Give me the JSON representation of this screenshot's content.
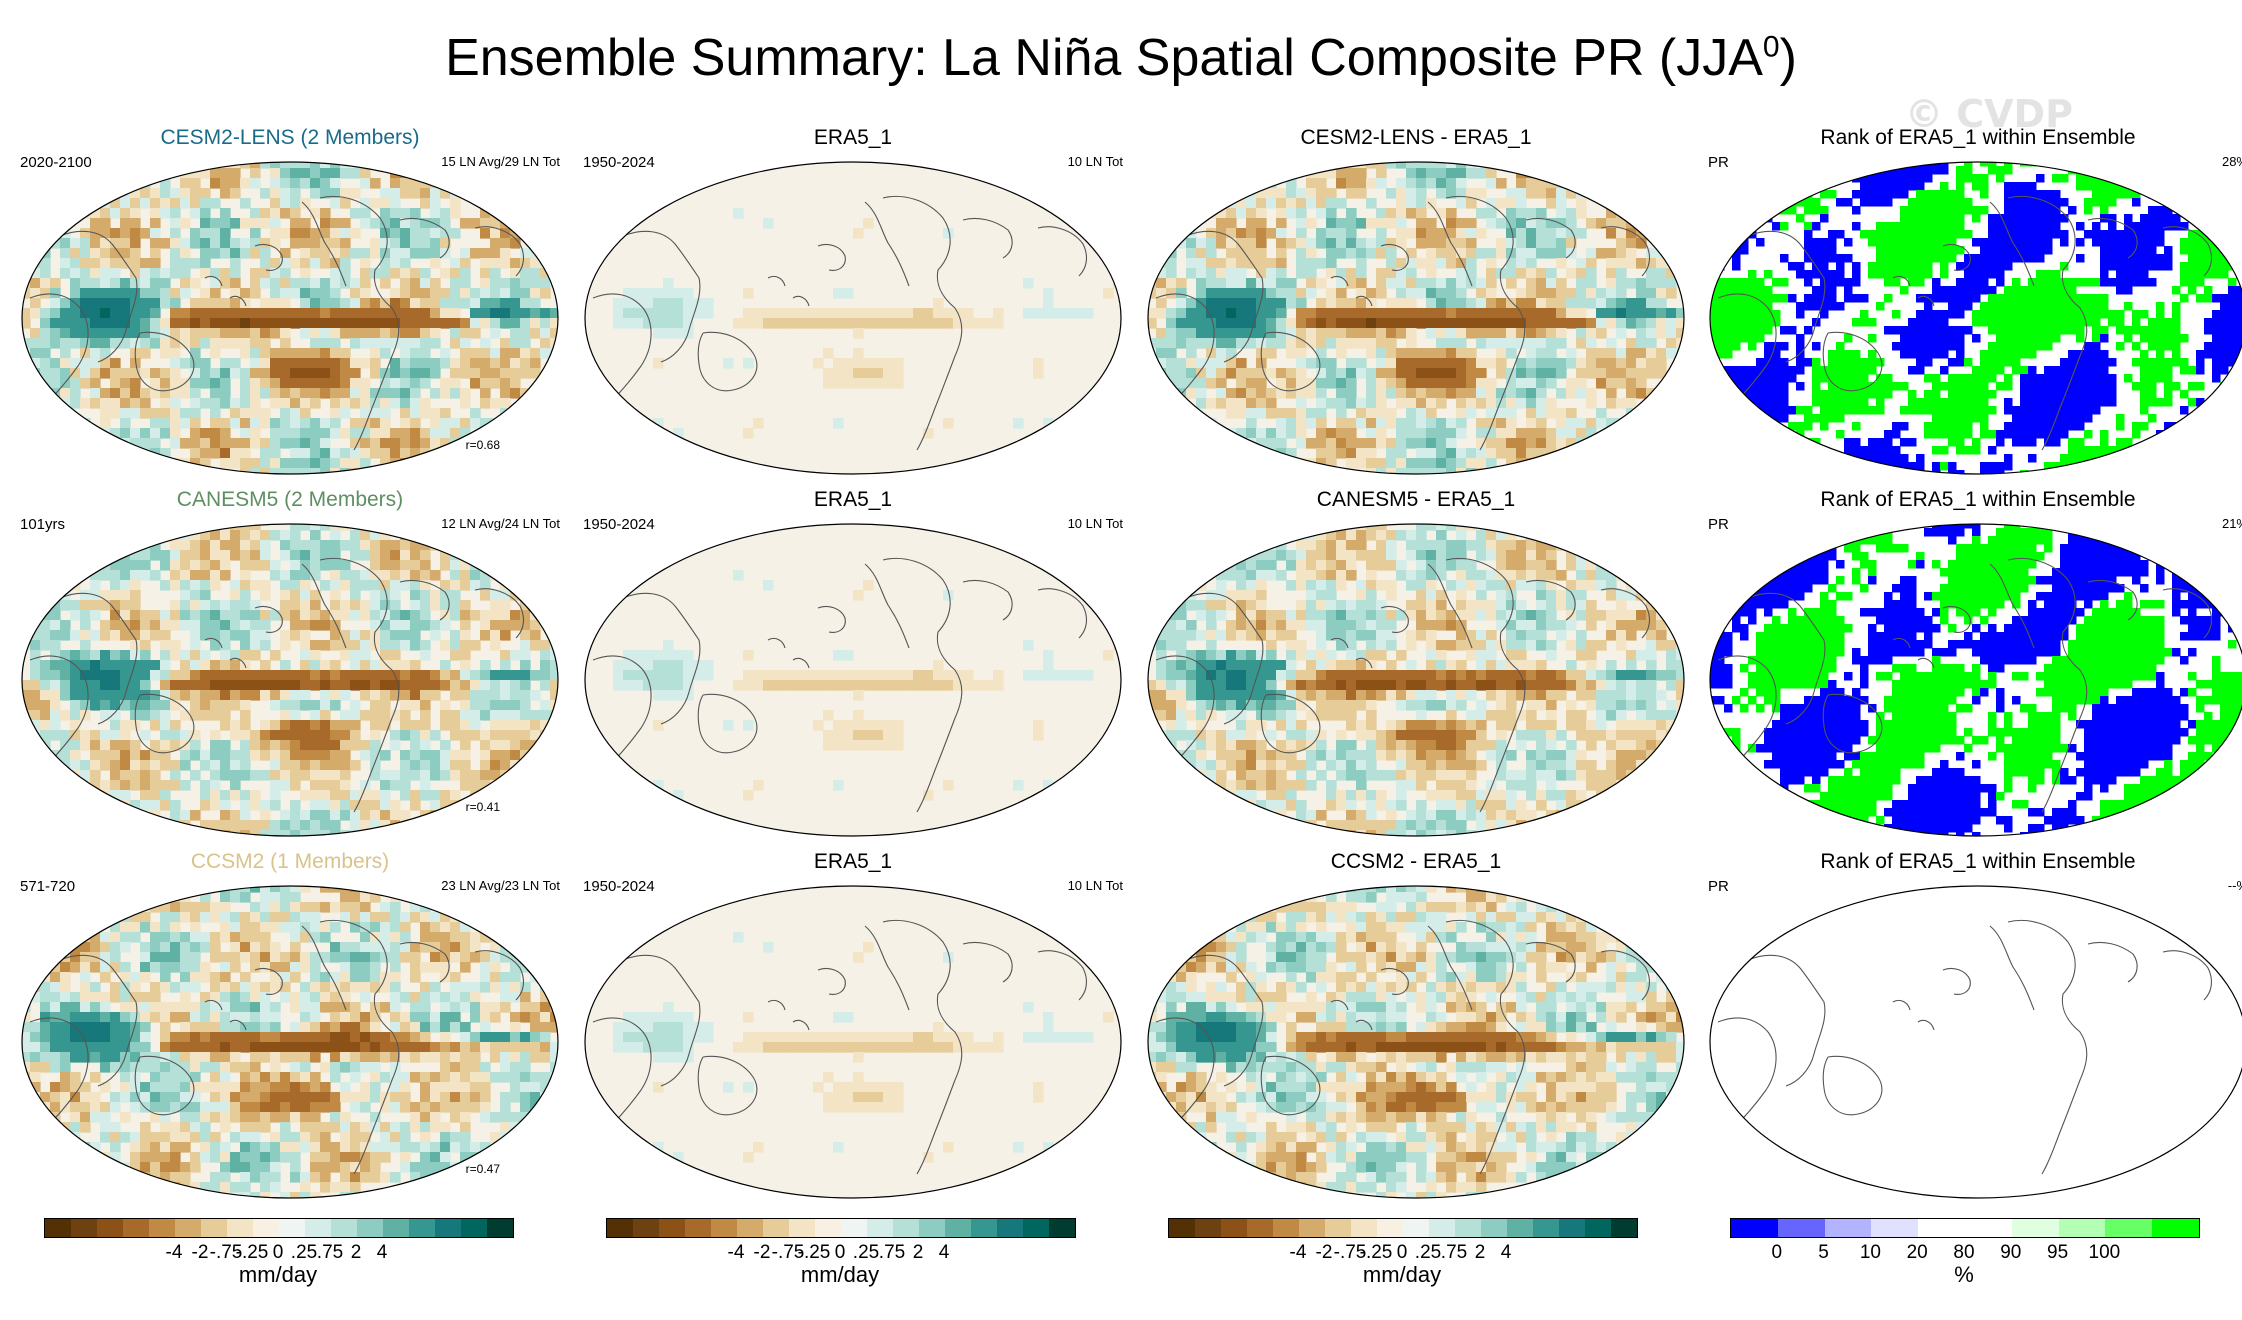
{
  "title": "Ensemble Summary: La Niña Spatial Composite PR (JJA",
  "title_superscript": "0",
  "title_close": ")",
  "watermark": "© CVDP",
  "rows": [
    {
      "ensemble": {
        "title": "CESM2-LENS (2 Members)",
        "title_color": "#1a6b8a",
        "period": "2020-2100",
        "events": "15 LN Avg/29 LN Tot",
        "corr": "r=0.68"
      },
      "obs": {
        "title": "ERA5_1",
        "period": "1950-2024",
        "events": "10 LN Tot"
      },
      "diff": {
        "title": "CESM2-LENS - ERA5_1"
      },
      "rank": {
        "title": "Rank of ERA5_1 within Ensemble",
        "var": "PR",
        "pct": "28%"
      }
    },
    {
      "ensemble": {
        "title": "CANESM5 (2 Members)",
        "title_color": "#5e8f63",
        "period": "101yrs",
        "events": "12 LN Avg/24 LN Tot",
        "corr": "r=0.41"
      },
      "obs": {
        "title": "ERA5_1",
        "period": "1950-2024",
        "events": "10 LN Tot"
      },
      "diff": {
        "title": "CANESM5 - ERA5_1"
      },
      "rank": {
        "title": "Rank of ERA5_1 within Ensemble",
        "var": "PR",
        "pct": "21%"
      }
    },
    {
      "ensemble": {
        "title": "CCSM2 (1 Members)",
        "title_color": "#d9c38a",
        "period": "571-720",
        "events": "23 LN Avg/23 LN Tot",
        "corr": "r=0.47"
      },
      "obs": {
        "title": "ERA5_1",
        "period": "1950-2024",
        "events": "10 LN Tot"
      },
      "diff": {
        "title": "CCSM2 - ERA5_1"
      },
      "rank": {
        "title": "Rank of ERA5_1 within Ensemble",
        "var": "PR",
        "pct": "--%"
      }
    }
  ],
  "colorbar_pr": {
    "colors": [
      "#543005",
      "#6e4110",
      "#8c5117",
      "#a86a2a",
      "#c08a45",
      "#d4ab6a",
      "#e6cc98",
      "#f2e4c5",
      "#f8f0e2",
      "#eef5f2",
      "#d5ede8",
      "#b4e0d8",
      "#8dcdc1",
      "#5fb1a4",
      "#35978f",
      "#16787a",
      "#01665e",
      "#003c30"
    ],
    "ticks": [
      "-4",
      "-2",
      "-.75",
      "-.25",
      "0",
      ".25",
      ".75",
      "2",
      "4"
    ],
    "unit": "mm/day"
  },
  "colorbar_rank": {
    "colors": [
      "#0000ff",
      "#6666ff",
      "#b3b3ff",
      "#e0e0ff",
      "#ffffff",
      "#ffffff",
      "#e0ffe0",
      "#b3ffb3",
      "#66ff66",
      "#00ff00"
    ],
    "ticks": [
      "0",
      "5",
      "10",
      "20",
      "80",
      "90",
      "95",
      "100"
    ],
    "unit": "%"
  },
  "legend": {
    "bar_colors": {
      "blue": "#0000ff",
      "green": "#00ff00"
    }
  }
}
